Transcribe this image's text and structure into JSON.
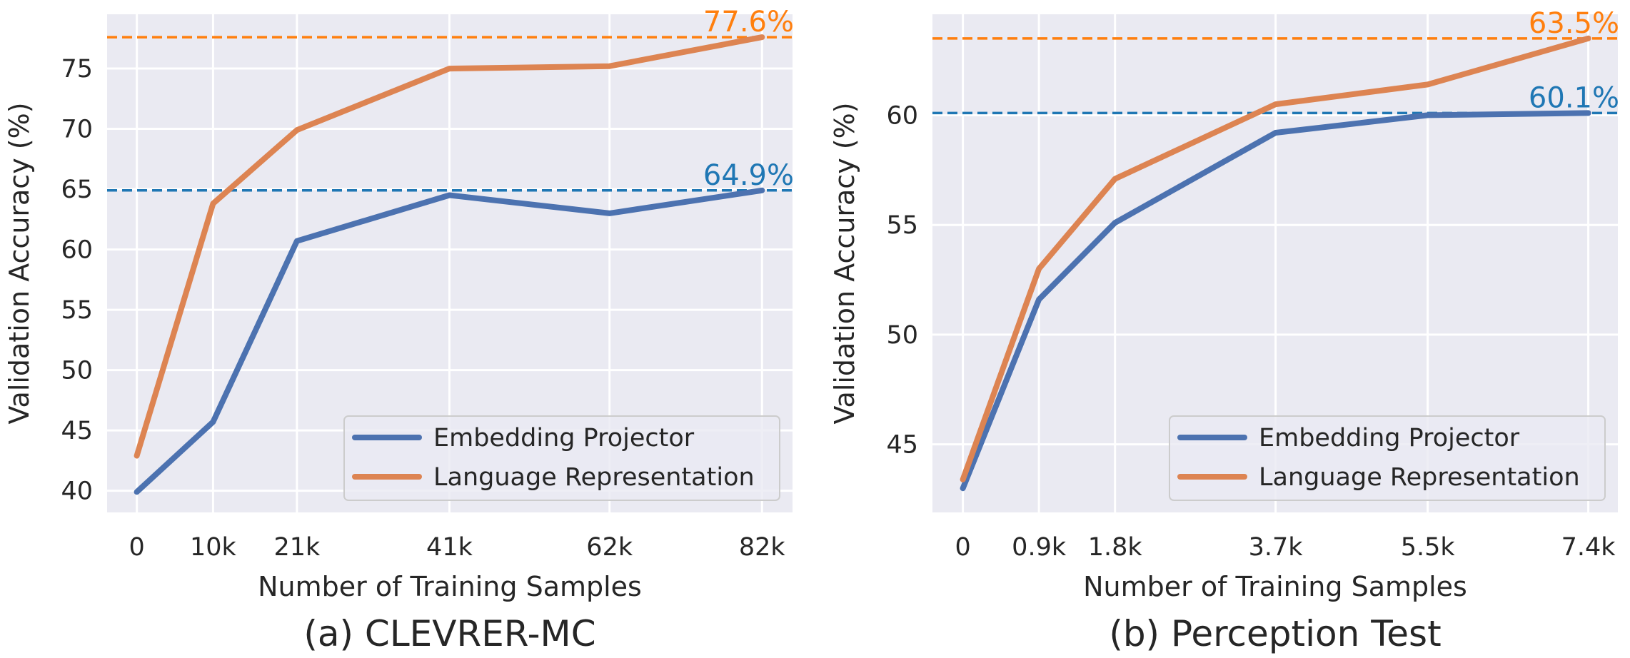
{
  "chart_data": [
    {
      "type": "line",
      "caption": "(a) CLEVRER-MC",
      "xlabel": "Number of Training Samples",
      "ylabel": "Validation Accuracy (%)",
      "x": [
        0,
        10,
        21,
        41,
        62,
        82
      ],
      "x_tick_labels": [
        "0",
        "10k",
        "21k",
        "41k",
        "62k",
        "82k"
      ],
      "x_unit": "thousand samples",
      "y_ticks": [
        40,
        45,
        50,
        55,
        60,
        65,
        70,
        75
      ],
      "ylim": [
        38.2,
        79.5
      ],
      "xlim": [
        -3.9,
        86.0
      ],
      "grid": true,
      "legend_position": "lower-right",
      "series": [
        {
          "name": "Embedding Projector",
          "color": "#4c72b0",
          "values": [
            39.9,
            45.7,
            60.7,
            64.5,
            63.0,
            64.9
          ]
        },
        {
          "name": "Language Representation",
          "color": "#dd8452",
          "values": [
            42.9,
            63.8,
            69.9,
            75.0,
            75.2,
            77.6
          ]
        }
      ],
      "reference_lines": [
        {
          "y": 77.6,
          "label": "77.6%",
          "color": "#ff7f0e"
        },
        {
          "y": 64.9,
          "label": "64.9%",
          "color": "#1f77b4"
        }
      ]
    },
    {
      "type": "line",
      "caption": "(b) Perception Test",
      "xlabel": "Number of Training Samples",
      "ylabel": "Validation Accuracy (%)",
      "x": [
        0,
        0.9,
        1.8,
        3.7,
        5.5,
        7.4
      ],
      "x_tick_labels": [
        "0",
        "0.9k",
        "1.8k",
        "3.7k",
        "5.5k",
        "7.4k"
      ],
      "x_unit": "thousand samples",
      "y_ticks": [
        45,
        50,
        55,
        60
      ],
      "ylim": [
        41.9,
        64.6
      ],
      "xlim": [
        -0.36,
        7.75
      ],
      "grid": true,
      "legend_position": "lower-right",
      "series": [
        {
          "name": "Embedding Projector",
          "color": "#4c72b0",
          "values": [
            43.0,
            51.6,
            55.1,
            59.2,
            60.0,
            60.1
          ]
        },
        {
          "name": "Language Representation",
          "color": "#dd8452",
          "values": [
            43.4,
            53.0,
            57.1,
            60.5,
            61.4,
            63.5
          ]
        }
      ],
      "reference_lines": [
        {
          "y": 63.5,
          "label": "63.5%",
          "color": "#ff7f0e"
        },
        {
          "y": 60.1,
          "label": "60.1%",
          "color": "#1f77b4"
        }
      ]
    }
  ]
}
